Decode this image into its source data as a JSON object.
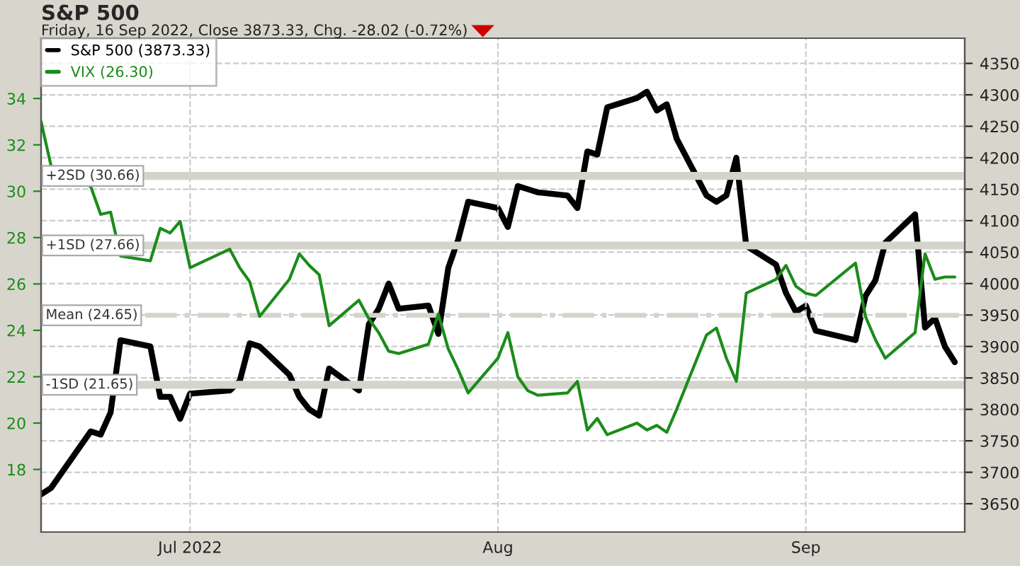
{
  "chart_data": {
    "type": "line",
    "title": "S&P 500",
    "subtitle": "Friday, 16 Sep 2022, Close 3873.33, Chg. -28.02 (-0.72%)",
    "x": [
      "2022-06-16",
      "2022-06-17",
      "2022-06-21",
      "2022-06-22",
      "2022-06-23",
      "2022-06-24",
      "2022-06-27",
      "2022-06-28",
      "2022-06-29",
      "2022-06-30",
      "2022-07-01",
      "2022-07-05",
      "2022-07-06",
      "2022-07-07",
      "2022-07-08",
      "2022-07-11",
      "2022-07-12",
      "2022-07-13",
      "2022-07-14",
      "2022-07-15",
      "2022-07-18",
      "2022-07-19",
      "2022-07-20",
      "2022-07-21",
      "2022-07-22",
      "2022-07-25",
      "2022-07-26",
      "2022-07-27",
      "2022-07-28",
      "2022-07-29",
      "2022-08-01",
      "2022-08-02",
      "2022-08-03",
      "2022-08-04",
      "2022-08-05",
      "2022-08-08",
      "2022-08-09",
      "2022-08-10",
      "2022-08-11",
      "2022-08-12",
      "2022-08-15",
      "2022-08-16",
      "2022-08-17",
      "2022-08-18",
      "2022-08-19",
      "2022-08-22",
      "2022-08-23",
      "2022-08-24",
      "2022-08-25",
      "2022-08-26",
      "2022-08-29",
      "2022-08-30",
      "2022-08-31",
      "2022-09-01",
      "2022-09-02",
      "2022-09-06",
      "2022-09-07",
      "2022-09-08",
      "2022-09-09",
      "2022-09-12",
      "2022-09-13",
      "2022-09-14",
      "2022-09-15",
      "2022-09-16"
    ],
    "series": [
      {
        "name": "S&P 500 (3873.33)",
        "color": "#000000",
        "axis": "y2",
        "values": [
          3665,
          3675,
          3765,
          3760,
          3795,
          3910,
          3900,
          3820,
          3820,
          3785,
          3825,
          3830,
          3845,
          3905,
          3900,
          3855,
          3820,
          3800,
          3790,
          3865,
          3830,
          3935,
          3960,
          4000,
          3960,
          3965,
          3920,
          4025,
          4070,
          4130,
          4120,
          4090,
          4155,
          4150,
          4145,
          4140,
          4120,
          4210,
          4205,
          4280,
          4295,
          4305,
          4275,
          4285,
          4230,
          4140,
          4130,
          4140,
          4200,
          4060,
          4030,
          3985,
          3955,
          3965,
          3925,
          3910,
          3980,
          4005,
          4065,
          4110,
          3930,
          3945,
          3900,
          3875
        ]
      },
      {
        "name": "VIX (26.30)",
        "color": "#1a8c1a",
        "axis": "y",
        "values": [
          33.0,
          31.1,
          30.2,
          29.0,
          29.1,
          27.2,
          27.0,
          28.4,
          28.2,
          28.7,
          26.7,
          27.5,
          26.7,
          26.1,
          24.6,
          26.2,
          27.3,
          26.8,
          26.4,
          24.2,
          25.3,
          24.5,
          23.9,
          23.1,
          23.0,
          23.4,
          24.7,
          23.2,
          22.3,
          21.3,
          22.8,
          23.9,
          22.0,
          21.4,
          21.2,
          21.3,
          21.8,
          19.7,
          20.2,
          19.5,
          20.0,
          19.7,
          19.9,
          19.6,
          20.6,
          23.8,
          24.1,
          22.8,
          21.8,
          25.6,
          26.2,
          26.8,
          25.9,
          25.6,
          25.5,
          26.9,
          24.6,
          23.6,
          22.8,
          23.9,
          27.3,
          26.2,
          26.3,
          26.3
        ]
      }
    ],
    "xlim": [
      "2022-06-16",
      "2022-09-17"
    ],
    "xticks": [
      {
        "value": "2022-07-01",
        "label": "Jul 2022"
      },
      {
        "value": "2022-08-01",
        "label": "Aug"
      },
      {
        "value": "2022-09-01",
        "label": "Sep"
      }
    ],
    "ylim": [
      15.3,
      36.6
    ],
    "yticks": [
      18,
      20,
      22,
      24,
      26,
      28,
      30,
      32,
      34
    ],
    "y2lim": [
      3605,
      4390
    ],
    "y2ticks": [
      3650,
      3700,
      3750,
      3800,
      3850,
      3900,
      3950,
      4000,
      4050,
      4100,
      4150,
      4200,
      4250,
      4300,
      4350
    ],
    "ref_lines": [
      {
        "axis": "y",
        "value": 30.66,
        "label": "+2SD (30.66)",
        "color": "#d4d4cc",
        "line_style": "solid"
      },
      {
        "axis": "y",
        "value": 27.66,
        "label": "+1SD (27.66)",
        "color": "#d4d4cc",
        "line_style": "solid"
      },
      {
        "axis": "y",
        "value": 24.65,
        "label": "Mean (24.65)",
        "color": "#d4d4cc",
        "line_style": "dashdot"
      },
      {
        "axis": "y",
        "value": 21.65,
        "label": "-1SD (21.65)",
        "color": "#d4d4cc",
        "line_style": "solid"
      }
    ],
    "grid": true,
    "legend": "top left",
    "marker": "none",
    "line_style": "solid"
  }
}
